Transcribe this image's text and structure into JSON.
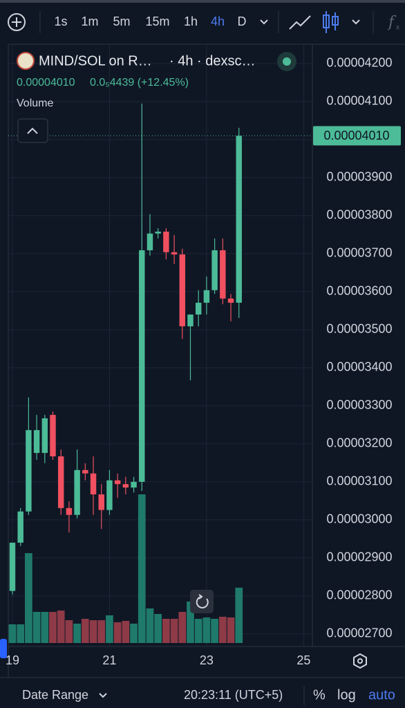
{
  "toolbar": {
    "intervals": [
      "1s",
      "1m",
      "5m",
      "15m",
      "1h",
      "4h",
      "D"
    ],
    "active_index": 5
  },
  "chart_data": {
    "type": "candlestick",
    "title": "MIND/SOL on R…",
    "subtitle": "· 4h · dexsc…",
    "last_price": {
      "value": 4.01e-05,
      "label": "0.00004010"
    },
    "change": "0.0₅4439 (+12.45%)",
    "volume_label": "Volume",
    "up_color": "#4cbb97",
    "down_color": "#f0505f",
    "volume_up_color": "#1f7a6b",
    "volume_down_color": "#8e3a47",
    "x": [
      19,
      19.1667,
      19.3333,
      19.5,
      19.6667,
      19.8333,
      20,
      20.1667,
      20.3333,
      20.5,
      20.6667,
      20.8333,
      21,
      21.1667,
      21.3333,
      21.5,
      21.6667,
      21.8333,
      22,
      22.1667,
      22.3333,
      22.5,
      22.6667,
      22.8333,
      23,
      23.1667,
      23.3333,
      23.5,
      23.6667
    ],
    "open": [
      2.813e-05,
      2.94e-05,
      3.022e-05,
      3.176e-05,
      3.176e-05,
      3.276e-05,
      3.167e-05,
      3.031e-05,
      3.013e-05,
      3.131e-05,
      3.122e-05,
      3.067e-05,
      3.026e-05,
      3.104e-05,
      3.094e-05,
      3.085e-05,
      3.1e-05,
      3.709e-05,
      3.753e-05,
      3.758e-05,
      3.704e-05,
      3.698e-05,
      3.509e-05,
      3.54e-05,
      3.571e-05,
      3.604e-05,
      3.709e-05,
      3.582e-05,
      3.571e-05
    ],
    "high": [
      2.94e-05,
      3.031e-05,
      3.322e-05,
      3.276e-05,
      3.276e-05,
      3.285e-05,
      3.185e-05,
      3.049e-05,
      3.185e-05,
      3.149e-05,
      3.167e-05,
      3.094e-05,
      3.131e-05,
      3.122e-05,
      3.113e-05,
      3.113e-05,
      4.095e-05,
      3.804e-05,
      3.767e-05,
      3.767e-05,
      3.749e-05,
      3.713e-05,
      3.54e-05,
      3.604e-05,
      3.64e-05,
      3.74e-05,
      3.74e-05,
      3.594e-05,
      4.031e-05
    ],
    "low": [
      2.804e-05,
      2.931e-05,
      3.013e-05,
      3.158e-05,
      3.149e-05,
      3.158e-05,
      3.013e-05,
      2.967e-05,
      3.004e-05,
      3.104e-05,
      3.013e-05,
      2.976e-05,
      3.013e-05,
      3.058e-05,
      3.067e-05,
      3.072e-05,
      3.076e-05,
      3.695e-05,
      3.74e-05,
      3.685e-05,
      3.673e-05,
      3.476e-05,
      3.367e-05,
      3.509e-05,
      3.54e-05,
      3.594e-05,
      3.567e-05,
      3.522e-05,
      3.531e-05
    ],
    "close": [
      2.94e-05,
      3.022e-05,
      3.236e-05,
      3.236e-05,
      3.267e-05,
      3.167e-05,
      3.031e-05,
      3.013e-05,
      3.131e-05,
      3.122e-05,
      3.067e-05,
      3.026e-05,
      3.104e-05,
      3.094e-05,
      3.085e-05,
      3.1e-05,
      3.709e-05,
      3.753e-05,
      3.758e-05,
      3.704e-05,
      3.698e-05,
      3.509e-05,
      3.54e-05,
      3.571e-05,
      3.604e-05,
      3.709e-05,
      3.582e-05,
      3.571e-05,
      4.01e-05
    ],
    "volume": [
      27,
      27,
      130,
      45,
      45,
      45,
      47,
      33,
      28,
      35,
      33,
      33,
      40,
      30,
      32,
      28,
      215,
      50,
      42,
      35,
      35,
      45,
      60,
      35,
      37,
      35,
      38,
      37,
      80
    ],
    "xlim": [
      18.915,
      25.18
    ],
    "xticks": [
      19,
      21,
      23,
      25
    ],
    "ylim": [
      2.667e-05,
      4.249e-05
    ],
    "yticks": [
      {
        "value": 4.2e-05,
        "label": "0.00004200"
      },
      {
        "value": 4.1e-05,
        "label": "0.00004100"
      },
      {
        "value": 4e-05,
        "label": "0.00004000"
      },
      {
        "value": 3.9e-05,
        "label": "0.00003900"
      },
      {
        "value": 3.8e-05,
        "label": "0.00003800"
      },
      {
        "value": 3.7e-05,
        "label": "0.00003700"
      },
      {
        "value": 3.6e-05,
        "label": "0.00003600"
      },
      {
        "value": 3.5e-05,
        "label": "0.00003500"
      },
      {
        "value": 3.4e-05,
        "label": "0.00003400"
      },
      {
        "value": 3.3e-05,
        "label": "0.00003300"
      },
      {
        "value": 3.2e-05,
        "label": "0.00003200"
      },
      {
        "value": 3.1e-05,
        "label": "0.00003100"
      },
      {
        "value": 3e-05,
        "label": "0.00003000"
      },
      {
        "value": 2.9e-05,
        "label": "0.00002900"
      },
      {
        "value": 2.8e-05,
        "label": "0.00002800"
      },
      {
        "value": 2.7e-05,
        "label": "0.00002700"
      }
    ],
    "grid": true
  },
  "footer": {
    "date_range": "Date Range",
    "time": "20:23:11 (UTC+5)",
    "percent": "%",
    "log": "log",
    "auto": "auto"
  }
}
